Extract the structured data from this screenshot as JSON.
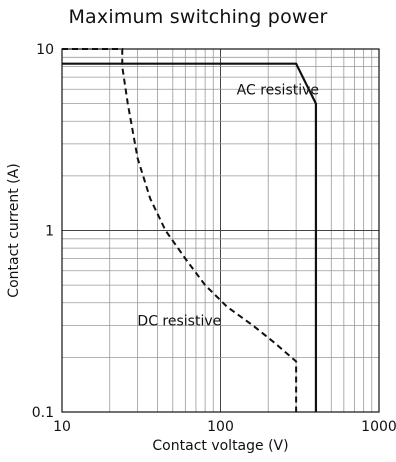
{
  "chart_data": {
    "type": "line",
    "title": "Maximum switching power",
    "xlabel": "Contact voltage (V)",
    "ylabel": "Contact current (A)",
    "xscale": "log",
    "yscale": "log",
    "xlim": [
      10,
      1000
    ],
    "ylim": [
      0.1,
      10
    ],
    "grid": true,
    "x_ticks": [
      "10",
      "100",
      "1000"
    ],
    "y_ticks": [
      "10",
      "1",
      "0.1"
    ],
    "series": [
      {
        "name": "AC resistive",
        "style": "solid",
        "points": [
          [
            10,
            8.3
          ],
          [
            300,
            8.3
          ],
          [
            400,
            5.0
          ],
          [
            400,
            0.1
          ]
        ]
      },
      {
        "name": "DC resistive",
        "style": "dashed",
        "points": [
          [
            10,
            10
          ],
          [
            24,
            10
          ],
          [
            24,
            8.0
          ],
          [
            26,
            5.0
          ],
          [
            30,
            2.5
          ],
          [
            36,
            1.5
          ],
          [
            45,
            1.0
          ],
          [
            60,
            0.7
          ],
          [
            80,
            0.5
          ],
          [
            110,
            0.38
          ],
          [
            160,
            0.3
          ],
          [
            220,
            0.24
          ],
          [
            300,
            0.19
          ],
          [
            300,
            0.1
          ]
        ]
      }
    ],
    "annotations": [
      {
        "text": "AC resistive",
        "x": 230,
        "y": 5.6
      },
      {
        "text": "DC resistive",
        "x": 55,
        "y": 0.3
      }
    ]
  },
  "colors": {
    "line": "#111111",
    "grid": "#9a9a9a",
    "background": "#ffffff"
  }
}
